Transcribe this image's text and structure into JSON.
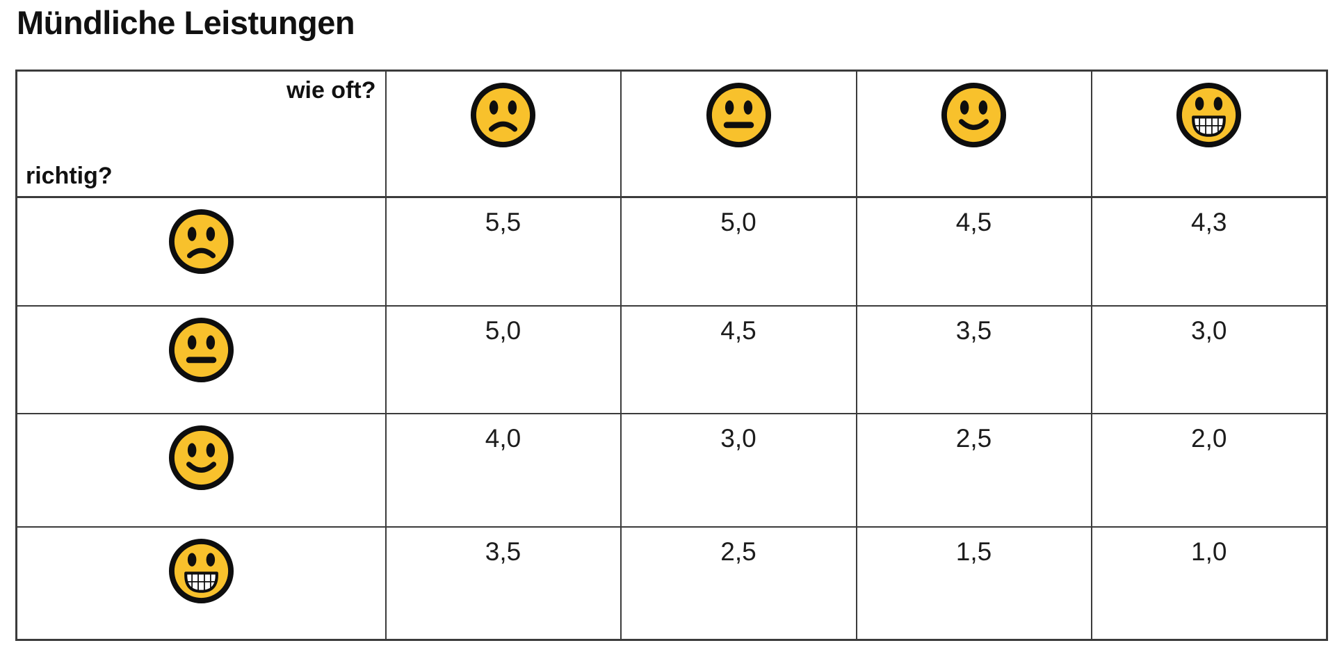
{
  "page": {
    "title": "Mündliche Leistungen",
    "background": "#ffffff"
  },
  "colors": {
    "emoji_fill": "#F8C12C",
    "emoji_outline": "#0E0E0E",
    "emoji_teeth": "#FFFFFF",
    "table_border": "#3B3B3B",
    "text": "#1A1A1A"
  },
  "table": {
    "corner_top_right_label": "wie oft?",
    "corner_bottom_left_label": "richtig?",
    "column_header_icons": [
      "frowning-face",
      "neutral-face",
      "slightly-smiling-face",
      "grinning-face"
    ],
    "row_header_icons": [
      "frowning-face",
      "neutral-face",
      "slightly-smiling-face",
      "grinning-face"
    ],
    "grades": [
      [
        "5,5",
        "5,0",
        "4,5",
        "4,3"
      ],
      [
        "5,0",
        "4,5",
        "3,5",
        "3,0"
      ],
      [
        "4,0",
        "3,0",
        "2,5",
        "2,0"
      ],
      [
        "3,5",
        "2,5",
        "1,5",
        "1,0"
      ]
    ]
  }
}
